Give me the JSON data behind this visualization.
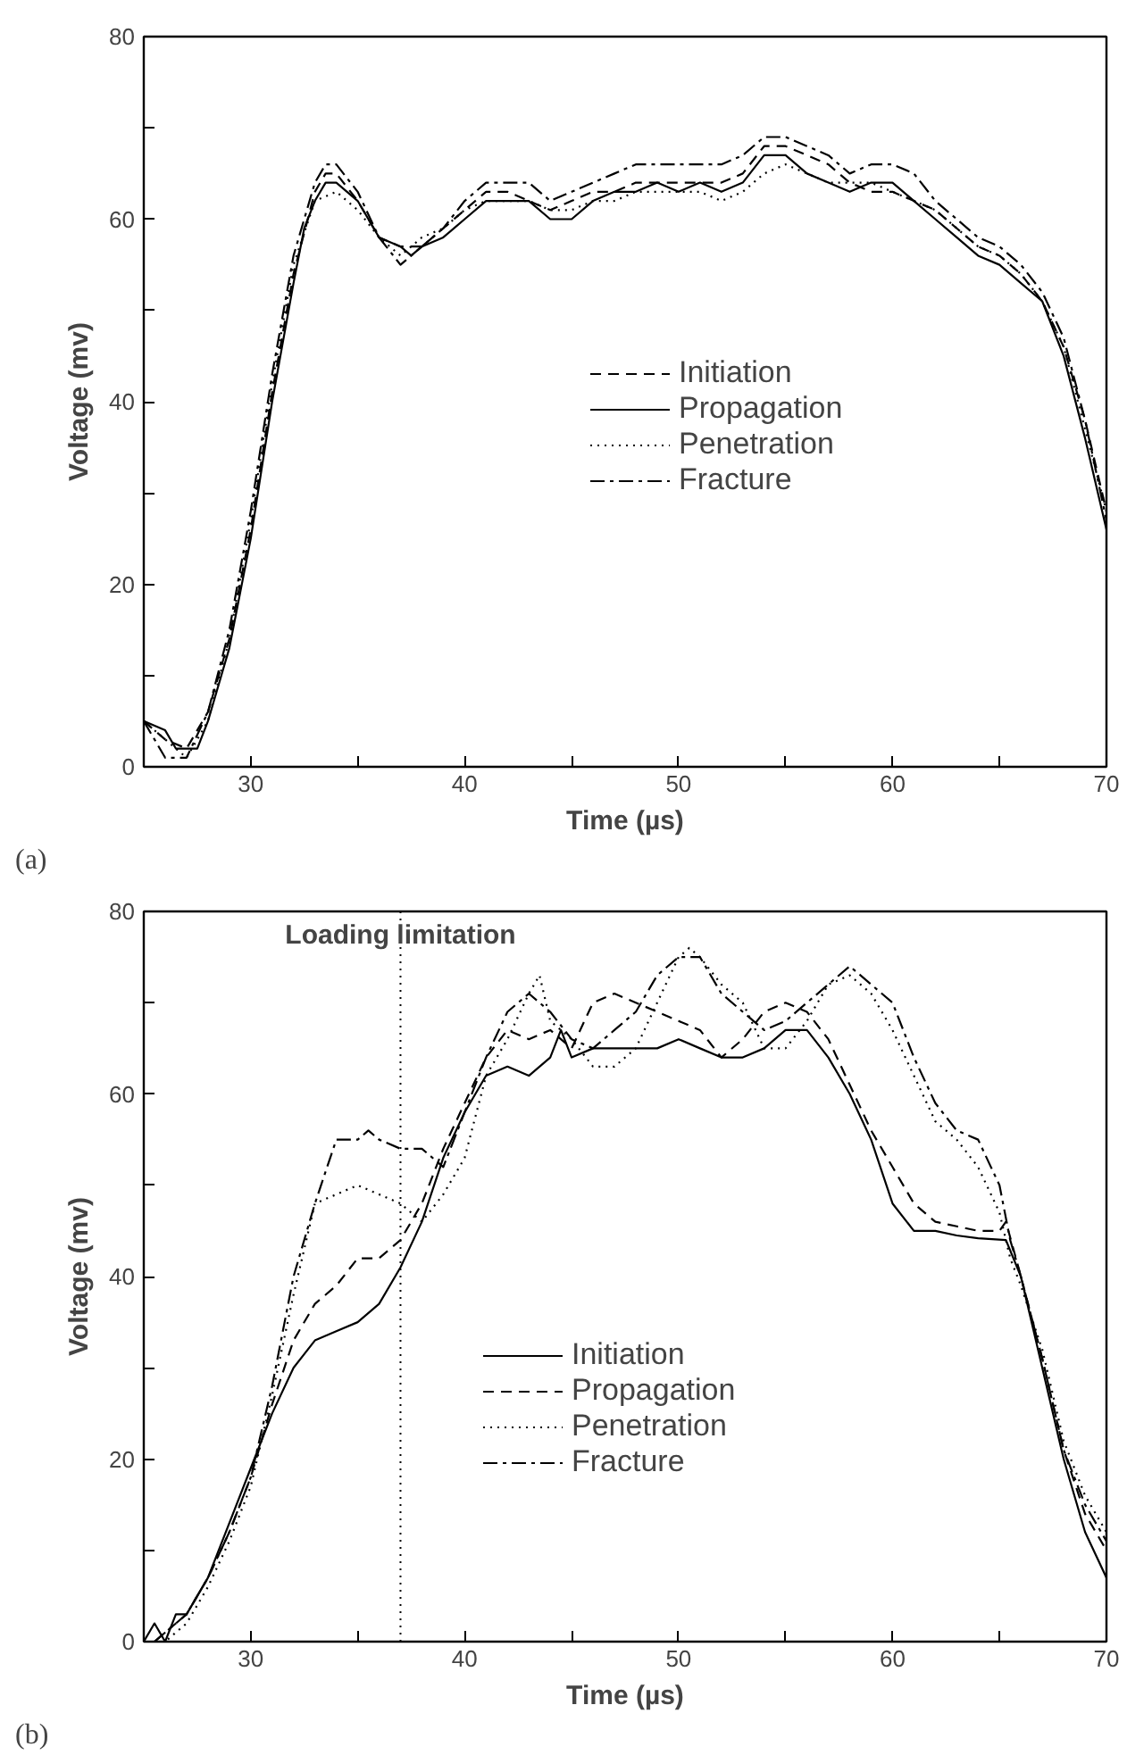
{
  "chart_data": [
    {
      "type": "line",
      "xlabel": "Time (µs)",
      "ylabel": "Voltage (mv)",
      "annotations": [
        "(a)"
      ],
      "xlim": [
        25,
        70
      ],
      "ylim": [
        0,
        80
      ],
      "xticks": [
        {
          "value": 25,
          "label": null
        },
        30,
        {
          "value": 35,
          "label": null
        },
        40,
        {
          "value": 45,
          "label": null
        },
        50,
        {
          "value": 55,
          "label": null
        },
        60,
        {
          "value": 65,
          "label": null
        },
        70
      ],
      "yticks": [
        0,
        {
          "value": 10,
          "label": null
        },
        20,
        {
          "value": 30,
          "label": null
        },
        40,
        {
          "value": 50,
          "label": null
        },
        60,
        {
          "value": 70,
          "label": null
        },
        80
      ],
      "grid": false,
      "legend": "center",
      "marker": "none",
      "series": [
        {
          "name": "Initiation",
          "color": "#000000",
          "line_style": "dashed",
          "x": [
            25,
            26,
            27,
            28,
            29,
            30,
            31,
            32,
            33,
            33.5,
            34,
            35,
            36,
            37,
            38,
            39,
            40,
            41,
            42,
            43,
            44,
            45,
            46,
            47,
            48,
            49,
            50,
            51,
            52,
            53,
            54,
            55,
            56,
            57,
            58,
            59,
            60,
            61,
            62,
            63,
            64,
            65,
            66,
            67,
            68,
            69,
            70
          ],
          "values": [
            5,
            3,
            2,
            6,
            14,
            26,
            41,
            54,
            63,
            65,
            65,
            62,
            58,
            57,
            57,
            59,
            61,
            63,
            63,
            62,
            61,
            62,
            63,
            63,
            64,
            64,
            64,
            64,
            64,
            65,
            68,
            68,
            67,
            66,
            64,
            63,
            63,
            62,
            61,
            59,
            57,
            56,
            54,
            51,
            46,
            38,
            28
          ]
        },
        {
          "name": "Propagation",
          "color": "#000000",
          "line_style": "solid",
          "x": [
            25,
            26,
            26.5,
            27,
            27.5,
            28,
            29,
            30,
            31,
            32,
            32.5,
            33,
            33.5,
            34,
            35,
            36,
            37,
            37.5,
            38,
            39,
            40,
            41,
            42,
            43,
            44,
            45,
            46,
            47,
            48,
            49,
            50,
            51,
            52,
            53,
            54,
            55,
            56,
            57,
            58,
            59,
            60,
            61,
            62,
            63,
            64,
            65,
            66,
            67,
            68,
            69,
            70
          ],
          "values": [
            5,
            4,
            2,
            2,
            2,
            5,
            13,
            25,
            40,
            53,
            59,
            62,
            64,
            64,
            62,
            58,
            57,
            56,
            57,
            58,
            60,
            62,
            62,
            62,
            60,
            60,
            62,
            63,
            63,
            64,
            63,
            64,
            63,
            64,
            67,
            67,
            65,
            64,
            63,
            64,
            64,
            62,
            60,
            58,
            56,
            55,
            53,
            51,
            45,
            36,
            26
          ]
        },
        {
          "name": "Penetration",
          "color": "#000000",
          "line_style": "dotted",
          "x": [
            25,
            26,
            27,
            28,
            29,
            30,
            31,
            32,
            33,
            34,
            35,
            36,
            37,
            38,
            39,
            40,
            41,
            42,
            43,
            44,
            45,
            46,
            47,
            48,
            49,
            50,
            51,
            52,
            53,
            54,
            55,
            56,
            57,
            58,
            59,
            60,
            61,
            62,
            63,
            64,
            65,
            66,
            67,
            68,
            69,
            70
          ],
          "values": [
            5,
            3,
            1,
            5,
            14,
            27,
            42,
            55,
            62,
            63,
            61,
            58,
            56,
            58,
            59,
            61,
            62,
            62,
            62,
            61,
            61,
            62,
            62,
            63,
            63,
            63,
            63,
            62,
            63,
            65,
            66,
            65,
            64,
            64,
            64,
            63,
            62,
            61,
            59,
            57,
            56,
            54,
            51,
            46,
            37,
            28
          ]
        },
        {
          "name": "Fracture",
          "color": "#000000",
          "line_style": "dashdot",
          "x": [
            25,
            26,
            27,
            28,
            29,
            30,
            31,
            32,
            33,
            33.5,
            34,
            35,
            36,
            37,
            38,
            39,
            40,
            41,
            42,
            43,
            44,
            45,
            46,
            47,
            48,
            49,
            50,
            51,
            52,
            53,
            54,
            55,
            56,
            57,
            58,
            59,
            60,
            61,
            62,
            63,
            64,
            65,
            66,
            67,
            68,
            69,
            70
          ],
          "values": [
            5,
            1,
            1,
            6,
            15,
            28,
            43,
            56,
            64,
            66,
            66,
            63,
            58,
            55,
            57,
            59,
            62,
            64,
            64,
            64,
            62,
            63,
            64,
            65,
            66,
            66,
            66,
            66,
            66,
            67,
            69,
            69,
            68,
            67,
            65,
            66,
            66,
            65,
            62,
            60,
            58,
            57,
            55,
            52,
            47,
            38,
            27
          ]
        }
      ]
    },
    {
      "type": "line",
      "xlabel": "Time (µs)",
      "ylabel": "Voltage (mv)",
      "annotations": [
        "(b)"
      ],
      "xlim": [
        25,
        70
      ],
      "ylim": [
        0,
        80
      ],
      "xticks": [
        {
          "value": 25,
          "label": null
        },
        30,
        {
          "value": 35,
          "label": null
        },
        40,
        {
          "value": 45,
          "label": null
        },
        50,
        {
          "value": 55,
          "label": null
        },
        60,
        {
          "value": 65,
          "label": null
        },
        70
      ],
      "yticks": [
        0,
        {
          "value": 10,
          "label": null
        },
        20,
        {
          "value": 30,
          "label": null
        },
        40,
        {
          "value": 50,
          "label": null
        },
        60,
        {
          "value": 70,
          "label": null
        },
        80
      ],
      "grid": false,
      "legend": "bottom",
      "marker": "none",
      "ref_lines": [
        {
          "axis": "x",
          "value": 37,
          "label": "Loading limitation",
          "line_style": "dotted",
          "color": "#000000"
        }
      ],
      "series": [
        {
          "name": "Initiation",
          "color": "#000000",
          "line_style": "solid",
          "x": [
            25,
            25.5,
            26,
            26.5,
            27,
            28,
            29,
            30,
            31,
            32,
            33,
            34,
            35,
            36,
            37,
            38,
            39,
            40,
            41,
            42,
            43,
            44,
            44.5,
            45,
            46,
            47,
            48,
            49,
            50,
            51,
            52,
            53,
            54,
            55,
            56,
            57,
            58,
            59,
            60,
            61,
            62,
            63,
            64,
            65.3,
            66,
            67,
            68,
            69,
            70
          ],
          "values": [
            0,
            2,
            0,
            3,
            3,
            7,
            13,
            19,
            25,
            30,
            33,
            34,
            35,
            37,
            41,
            46,
            53,
            58,
            62,
            63,
            62,
            64,
            67,
            64,
            65,
            65,
            65,
            65,
            66,
            65,
            64,
            64,
            65,
            67,
            67,
            64,
            60,
            55,
            48,
            45,
            45,
            44.5,
            44.2,
            44,
            40,
            30,
            20,
            12,
            7
          ]
        },
        {
          "name": "Propagation",
          "color": "#000000",
          "line_style": "dashed",
          "x": [
            25.5,
            26,
            27,
            28,
            29,
            30,
            31,
            32,
            33,
            34,
            35,
            36,
            37,
            38,
            39,
            40,
            41,
            42,
            43,
            44,
            45,
            46,
            47,
            48,
            49,
            50,
            51,
            52,
            53,
            54,
            55,
            56,
            57,
            58,
            59,
            60,
            61,
            62,
            63,
            64,
            65,
            65.3,
            66,
            67,
            68,
            69,
            70
          ],
          "values": [
            0,
            1,
            3,
            7,
            12,
            18,
            26,
            33,
            37,
            39,
            42,
            42,
            44,
            48,
            54,
            59,
            64,
            67,
            66,
            67,
            65,
            70,
            71,
            70,
            69,
            68,
            67,
            64,
            66,
            69,
            70,
            69,
            66,
            61,
            56,
            52,
            48,
            46,
            45.5,
            45,
            45,
            46,
            40,
            31,
            21,
            14,
            10
          ]
        },
        {
          "name": "Penetration",
          "color": "#000000",
          "line_style": "dotted",
          "x": [
            25.5,
            26,
            27,
            28,
            29,
            30,
            31,
            32,
            33,
            34,
            35,
            36,
            37,
            38,
            39,
            40,
            41,
            42,
            43,
            43.5,
            44,
            45,
            46,
            47,
            48,
            49,
            50,
            50.5,
            51,
            52,
            53,
            54,
            55,
            56,
            57,
            58,
            59,
            60,
            61,
            62,
            63,
            64,
            65,
            65.5,
            66,
            67,
            68,
            69,
            70
          ],
          "values": [
            0,
            0,
            2,
            6,
            11,
            17,
            27,
            38,
            48,
            49,
            50,
            49,
            48,
            46,
            49,
            53,
            62,
            66,
            71,
            73,
            68,
            66,
            63,
            63,
            65,
            70,
            75,
            76,
            75,
            72,
            70,
            65,
            65,
            68,
            72,
            73,
            71,
            67,
            62,
            57,
            55,
            52,
            47,
            42,
            39,
            32,
            22,
            16,
            12
          ]
        },
        {
          "name": "Fracture",
          "color": "#000000",
          "line_style": "dashdot",
          "x": [
            25.5,
            26,
            27,
            28,
            29,
            30,
            31,
            32,
            33,
            34,
            35,
            35.5,
            36,
            37,
            38,
            39,
            40,
            41,
            42,
            43,
            44,
            45,
            46,
            47,
            48,
            49,
            50,
            51,
            52,
            53,
            54,
            55,
            56,
            57,
            58,
            59,
            60,
            61,
            62,
            63,
            64,
            65,
            65.5,
            66,
            67,
            68,
            69,
            70
          ],
          "values": [
            0,
            1,
            3,
            7,
            12,
            18,
            28,
            40,
            48,
            55,
            55,
            56,
            55,
            54,
            54,
            52,
            58,
            64,
            69,
            71,
            69,
            66,
            65,
            67,
            69,
            73,
            75,
            75,
            71,
            69,
            67,
            68,
            70,
            72,
            74,
            72,
            70,
            64,
            59,
            56,
            55,
            50,
            44,
            40,
            31,
            21,
            15,
            11
          ]
        }
      ]
    }
  ]
}
